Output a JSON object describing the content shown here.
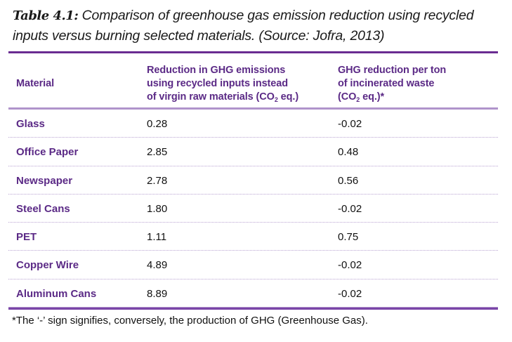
{
  "caption": {
    "label": "Table 4.1:",
    "text": " Comparison of greenhouse gas emission reduction using recycled inputs versus burning selected materials. (Source: Jofra, 2013)"
  },
  "table": {
    "headers": {
      "material": "Material",
      "col1_line1": "Reduction in GHG emissions",
      "col1_line2": "using recycled inputs instead",
      "col1_line3_pre": "of virgin raw materials (CO",
      "col1_sub": "2",
      "col1_line3_post": " eq.)",
      "col2_line1": "GHG reduction per ton",
      "col2_line2": "of incinerated waste",
      "col2_line3_pre": "(CO",
      "col2_sub": "2",
      "col2_line3_post": " eq.)*"
    },
    "rows": [
      {
        "material": "Glass",
        "recycled": "0.28",
        "incinerated": "-0.02"
      },
      {
        "material": "Office Paper",
        "recycled": "2.85",
        "incinerated": "0.48"
      },
      {
        "material": "Newspaper",
        "recycled": "2.78",
        "incinerated": "0.56"
      },
      {
        "material": "Steel Cans",
        "recycled": "1.80",
        "incinerated": "-0.02"
      },
      {
        "material": "PET",
        "recycled": "1.11",
        "incinerated": "0.75"
      },
      {
        "material": "Copper Wire",
        "recycled": "4.89",
        "incinerated": "-0.02"
      },
      {
        "material": "Aluminum Cans",
        "recycled": "8.89",
        "incinerated": "-0.02"
      }
    ]
  },
  "footnote": "*The ‘-’ sign signifies, conversely, the production of GHG (Greenhouse Gas).",
  "colors": {
    "accent": "#6a2c91",
    "header_text": "#5b2a86",
    "divider": "#b094cb"
  }
}
